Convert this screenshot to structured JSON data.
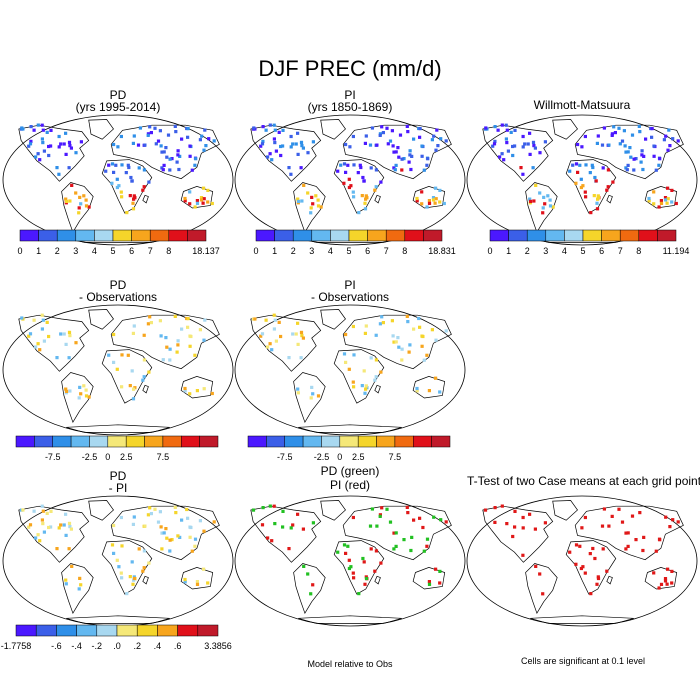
{
  "chart_data": {
    "type": "map-panels",
    "title": "DJF PREC (mm/d)",
    "panels": [
      {
        "id": "pd",
        "title_line1": "PD",
        "title_line2": "(yrs 1995-2014)",
        "dots": "mean"
      },
      {
        "id": "pi",
        "title_line1": "PI",
        "title_line2": "(yrs 1850-1869)",
        "dots": "mean"
      },
      {
        "id": "obs",
        "title_line1": "Willmott-Matsuura",
        "title_line2": "",
        "dots": "mean"
      },
      {
        "id": "pd_obs",
        "title_line1": "PD",
        "title_line2": "- Observations",
        "dots": "diff"
      },
      {
        "id": "pi_obs",
        "title_line1": "PI",
        "title_line2": "- Observations",
        "dots": "diff"
      },
      {
        "id": "pd_pi",
        "title_line1": "PD",
        "title_line2": "- PI",
        "dots": "pdpi"
      },
      {
        "id": "green_red",
        "title_line1": "PD (green)",
        "title_line2": "PI (red)",
        "dots": "greenred"
      },
      {
        "id": "ttest",
        "title_line1": "T-Test of two Case means at each grid point",
        "title_line2": "",
        "dots": "sig"
      }
    ],
    "colorbars": [
      {
        "id": "cb_pd",
        "colors": [
          "#4b18ff",
          "#3b5fe8",
          "#2f8fe8",
          "#63b8f0",
          "#a8d8f0",
          "#f5d52a",
          "#f7a51d",
          "#f06a10",
          "#e0101a",
          "#c01a2a"
        ],
        "labels": [
          {
            "text": "0",
            "pos": 0
          },
          {
            "text": "1",
            "pos": 1
          },
          {
            "text": "2",
            "pos": 2
          },
          {
            "text": "3",
            "pos": 3
          },
          {
            "text": "4",
            "pos": 4
          },
          {
            "text": "5",
            "pos": 5
          },
          {
            "text": "6",
            "pos": 6
          },
          {
            "text": "7",
            "pos": 7
          },
          {
            "text": "8",
            "pos": 8
          },
          {
            "text": "18.137",
            "pos": 10
          }
        ]
      },
      {
        "id": "cb_pi",
        "colors": [
          "#4b18ff",
          "#3b5fe8",
          "#2f8fe8",
          "#63b8f0",
          "#a8d8f0",
          "#f5d52a",
          "#f7a51d",
          "#f06a10",
          "#e0101a",
          "#c01a2a"
        ],
        "labels": [
          {
            "text": "0",
            "pos": 0
          },
          {
            "text": "1",
            "pos": 1
          },
          {
            "text": "2",
            "pos": 2
          },
          {
            "text": "3",
            "pos": 3
          },
          {
            "text": "4",
            "pos": 4
          },
          {
            "text": "5",
            "pos": 5
          },
          {
            "text": "6",
            "pos": 6
          },
          {
            "text": "7",
            "pos": 7
          },
          {
            "text": "8",
            "pos": 8
          },
          {
            "text": "18.831",
            "pos": 10
          }
        ]
      },
      {
        "id": "cb_obs",
        "colors": [
          "#4b18ff",
          "#3b5fe8",
          "#2f8fe8",
          "#63b8f0",
          "#a8d8f0",
          "#f5d52a",
          "#f7a51d",
          "#f06a10",
          "#e0101a",
          "#c01a2a"
        ],
        "labels": [
          {
            "text": "0",
            "pos": 0
          },
          {
            "text": "1",
            "pos": 1
          },
          {
            "text": "2",
            "pos": 2
          },
          {
            "text": "3",
            "pos": 3
          },
          {
            "text": "4",
            "pos": 4
          },
          {
            "text": "5",
            "pos": 5
          },
          {
            "text": "6",
            "pos": 6
          },
          {
            "text": "7",
            "pos": 7
          },
          {
            "text": "8",
            "pos": 8
          },
          {
            "text": "11.194",
            "pos": 10
          }
        ]
      },
      {
        "id": "cb_diff1",
        "colors": [
          "#4b18ff",
          "#3b5fe8",
          "#2f8fe8",
          "#63b8f0",
          "#a8d8f0",
          "#f5e878",
          "#f5d52a",
          "#f7a51d",
          "#f06a10",
          "#e0101a",
          "#c01a2a"
        ],
        "labels": [
          {
            "text": "-7.5",
            "pos": 2
          },
          {
            "text": "-2.5",
            "pos": 4
          },
          {
            "text": "0",
            "pos": 5
          },
          {
            "text": "2.5",
            "pos": 6
          },
          {
            "text": "7.5",
            "pos": 8
          }
        ]
      },
      {
        "id": "cb_diff2",
        "colors": [
          "#4b18ff",
          "#3b5fe8",
          "#2f8fe8",
          "#63b8f0",
          "#a8d8f0",
          "#f5e878",
          "#f5d52a",
          "#f7a51d",
          "#f06a10",
          "#e0101a",
          "#c01a2a"
        ],
        "labels": [
          {
            "text": "-7.5",
            "pos": 2
          },
          {
            "text": "-2.5",
            "pos": 4
          },
          {
            "text": "0",
            "pos": 5
          },
          {
            "text": "2.5",
            "pos": 6
          },
          {
            "text": "7.5",
            "pos": 8
          }
        ]
      },
      {
        "id": "cb_pdpi",
        "colors": [
          "#4b18ff",
          "#3b5fe8",
          "#2f8fe8",
          "#63b8f0",
          "#a8d8f0",
          "#f5e878",
          "#f5d52a",
          "#f7a51d",
          "#e0101a",
          "#c01a2a"
        ],
        "labels": [
          {
            "text": "-1.7758",
            "pos": 0
          },
          {
            "text": "-.6",
            "pos": 2
          },
          {
            "text": "-.4",
            "pos": 3
          },
          {
            "text": "-.2",
            "pos": 4
          },
          {
            "text": ".0",
            "pos": 5
          },
          {
            "text": ".2",
            "pos": 6
          },
          {
            "text": ".4",
            "pos": 7
          },
          {
            "text": ".6",
            "pos": 8
          },
          {
            "text": "3.3856",
            "pos": 10
          }
        ]
      }
    ],
    "notes": {
      "model_relative": "Model relative to Obs",
      "cells_significant": "Cells are significant at 0.1 level"
    }
  }
}
